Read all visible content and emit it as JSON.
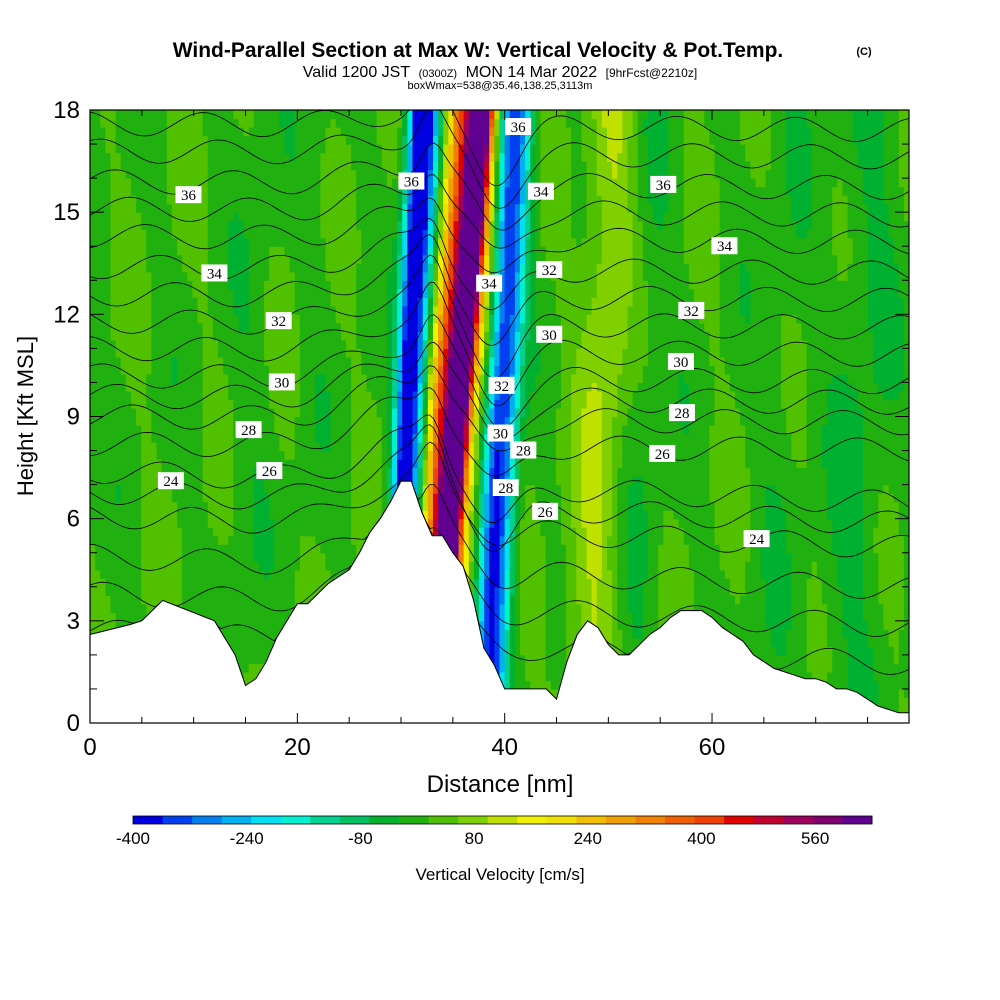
{
  "title": {
    "main": "Wind-Parallel Section at Max W: Vertical Velocity & Pot.Temp.",
    "mark": "(C)",
    "line2_prefix": "Valid 1200 JST",
    "line2_zulu": "(0300Z)",
    "line2_date": "MON 14 Mar 2022",
    "line2_fcst": "[9hrFcst@2210z]",
    "line3": "boxWmax=538@35.46,138.25,3113m"
  },
  "chart_data": {
    "type": "heatmap",
    "xlabel": "Distance [nm]",
    "ylabel": "Height [Kft MSL]",
    "xlim": [
      0,
      79
    ],
    "ylim": [
      0,
      18
    ],
    "x_ticks": [
      "0",
      "20",
      "40",
      "60"
    ],
    "y_ticks": [
      "0",
      "3",
      "6",
      "9",
      "12",
      "15",
      "18"
    ],
    "colorbar": {
      "label": "Vertical Velocity [cm/s]",
      "tick_labels": [
        "-400",
        "-240",
        "-80",
        "80",
        "240",
        "400",
        "560"
      ],
      "range": [
        -400,
        640
      ],
      "colors": [
        "#0000e0",
        "#0040f0",
        "#0080f0",
        "#00b0f0",
        "#00e0f0",
        "#00f0d0",
        "#00d090",
        "#00c060",
        "#00b030",
        "#20b010",
        "#50c000",
        "#80d000",
        "#c0e000",
        "#f0f000",
        "#f0e000",
        "#f0c000",
        "#f0a000",
        "#f08000",
        "#f06000",
        "#f04000",
        "#e00000",
        "#c00030",
        "#a00060",
        "#800070",
        "#600090"
      ]
    },
    "velocity_bands": [
      {
        "x": 31.0,
        "halfwidth": 1.6,
        "value": -420
      },
      {
        "x": 30.0,
        "halfwidth": 1.0,
        "value": -200
      },
      {
        "x": 35.0,
        "halfwidth": 1.0,
        "value": 560
      },
      {
        "x": 34.3,
        "halfwidth": 2.4,
        "value": 300
      },
      {
        "x": 33.2,
        "halfwidth": 3.4,
        "value": 150
      },
      {
        "x": 39.0,
        "halfwidth": 1.3,
        "value": -330
      },
      {
        "x": 40.3,
        "halfwidth": 1.1,
        "value": -160
      },
      {
        "x": 15.0,
        "halfwidth": 2.0,
        "value": -20
      },
      {
        "x": 21.0,
        "halfwidth": 1.5,
        "value": -10
      },
      {
        "x": 49.0,
        "halfwidth": 2.5,
        "value": 90
      },
      {
        "x": 53.0,
        "halfwidth": 2.5,
        "value": -30
      },
      {
        "x": 66.0,
        "halfwidth": 2.5,
        "value": -20
      },
      {
        "x": 74.0,
        "halfwidth": 3.0,
        "value": -40
      }
    ],
    "terrain": {
      "x": [
        0,
        4,
        5,
        7,
        12,
        14,
        15,
        16,
        17,
        18,
        19,
        20,
        21,
        23,
        24,
        25,
        26,
        27,
        28,
        29,
        30,
        31,
        32,
        33,
        34,
        35,
        36,
        37,
        38,
        39,
        40,
        41,
        42,
        43,
        44,
        45,
        46,
        47,
        48,
        49,
        50,
        51,
        52,
        53,
        54,
        55,
        56,
        57,
        58,
        59,
        60,
        61,
        62,
        63,
        64,
        65,
        66,
        67,
        68,
        69,
        70,
        71,
        72,
        73,
        74,
        75,
        76,
        77,
        78,
        79
      ],
      "h": [
        2.6,
        2.9,
        3.0,
        3.6,
        3.0,
        2.0,
        1.1,
        1.3,
        1.8,
        2.5,
        3.0,
        3.5,
        3.5,
        4.1,
        4.3,
        4.5,
        5.0,
        5.6,
        6.0,
        6.5,
        7.1,
        7.1,
        6.2,
        5.5,
        5.5,
        5.0,
        4.6,
        3.6,
        2.2,
        1.7,
        1.0,
        1.0,
        1.0,
        1.0,
        1.0,
        0.7,
        1.8,
        2.6,
        3.0,
        2.8,
        2.3,
        2.0,
        2.0,
        2.3,
        2.6,
        2.8,
        3.1,
        3.3,
        3.3,
        3.3,
        3.1,
        2.8,
        2.6,
        2.4,
        2.0,
        1.8,
        1.6,
        1.5,
        1.4,
        1.3,
        1.3,
        1.2,
        1.0,
        1.0,
        0.9,
        0.7,
        0.5,
        0.4,
        0.3,
        0.3
      ]
    },
    "isentropes": {
      "levels": [
        21,
        22,
        23,
        24,
        25,
        26,
        27,
        28,
        29,
        30,
        31,
        32,
        33,
        34,
        35,
        36,
        37,
        38,
        39
      ],
      "height_at_left_kft": [
        2.7,
        3.8,
        4.9,
        6.1,
        6.8,
        7.4,
        8.2,
        9.0,
        9.6,
        10.2,
        11.0,
        11.8,
        12.6,
        13.4,
        14.3,
        15.1,
        15.9,
        16.8,
        17.6
      ],
      "labeled": [
        "24",
        "26",
        "28",
        "30",
        "32",
        "34",
        "36"
      ]
    },
    "contour_labels": [
      {
        "text": "36",
        "x": 9.5,
        "y": 15.5
      },
      {
        "text": "36",
        "x": 31.0,
        "y": 15.9
      },
      {
        "text": "36",
        "x": 55.3,
        "y": 15.8
      },
      {
        "text": "36",
        "x": 41.3,
        "y": 17.5
      },
      {
        "text": "34",
        "x": 12.0,
        "y": 13.2
      },
      {
        "text": "34",
        "x": 38.5,
        "y": 12.9
      },
      {
        "text": "34",
        "x": 43.5,
        "y": 15.6
      },
      {
        "text": "34",
        "x": 61.2,
        "y": 14.0
      },
      {
        "text": "32",
        "x": 18.2,
        "y": 11.8
      },
      {
        "text": "32",
        "x": 44.3,
        "y": 13.3
      },
      {
        "text": "32",
        "x": 58.0,
        "y": 12.1
      },
      {
        "text": "32",
        "x": 39.7,
        "y": 9.9
      },
      {
        "text": "30",
        "x": 18.5,
        "y": 10.0
      },
      {
        "text": "30",
        "x": 44.3,
        "y": 11.4
      },
      {
        "text": "30",
        "x": 57.0,
        "y": 10.6
      },
      {
        "text": "30",
        "x": 39.6,
        "y": 8.5
      },
      {
        "text": "28",
        "x": 15.3,
        "y": 8.6
      },
      {
        "text": "28",
        "x": 41.8,
        "y": 8.0
      },
      {
        "text": "28",
        "x": 57.1,
        "y": 9.1
      },
      {
        "text": "28",
        "x": 40.1,
        "y": 6.9
      },
      {
        "text": "26",
        "x": 17.3,
        "y": 7.4
      },
      {
        "text": "26",
        "x": 43.9,
        "y": 6.2
      },
      {
        "text": "26",
        "x": 55.2,
        "y": 7.9
      },
      {
        "text": "24",
        "x": 7.8,
        "y": 7.1
      },
      {
        "text": "24",
        "x": 64.3,
        "y": 5.4
      }
    ]
  }
}
